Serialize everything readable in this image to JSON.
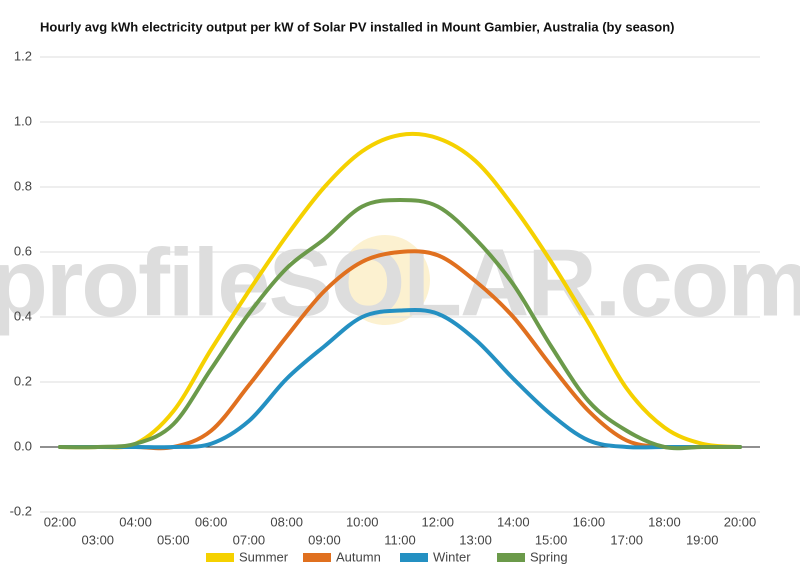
{
  "chart_data": {
    "type": "line",
    "title": "Hourly avg kWh electricity output per kW of Solar PV installed in Mount Gambier, Australia (by season)",
    "watermark": "profileSOLAR.com",
    "categories": [
      "02:00",
      "03:00",
      "04:00",
      "05:00",
      "06:00",
      "07:00",
      "08:00",
      "09:00",
      "10:00",
      "11:00",
      "12:00",
      "13:00",
      "14:00",
      "15:00",
      "16:00",
      "17:00",
      "18:00",
      "19:00",
      "20:00"
    ],
    "series": [
      {
        "name": "Summer",
        "color": "#f5d100",
        "values": [
          0,
          0,
          0.01,
          0.11,
          0.3,
          0.48,
          0.65,
          0.8,
          0.91,
          0.96,
          0.95,
          0.88,
          0.74,
          0.57,
          0.38,
          0.18,
          0.06,
          0.01,
          0
        ]
      },
      {
        "name": "Autumn",
        "color": "#e0701f",
        "values": [
          0,
          0,
          0,
          0,
          0.05,
          0.19,
          0.34,
          0.48,
          0.57,
          0.6,
          0.59,
          0.51,
          0.4,
          0.25,
          0.11,
          0.02,
          0,
          0,
          0
        ]
      },
      {
        "name": "Winter",
        "color": "#2490c2",
        "values": [
          0,
          0,
          0,
          0,
          0.01,
          0.08,
          0.21,
          0.31,
          0.4,
          0.42,
          0.41,
          0.33,
          0.21,
          0.1,
          0.02,
          0,
          0,
          0,
          0
        ]
      },
      {
        "name": "Spring",
        "color": "#6b9a4a",
        "values": [
          0,
          0,
          0.01,
          0.07,
          0.24,
          0.41,
          0.55,
          0.64,
          0.74,
          0.76,
          0.74,
          0.64,
          0.5,
          0.31,
          0.14,
          0.05,
          0,
          0,
          0
        ]
      }
    ],
    "ylim": [
      -0.2,
      1.2
    ],
    "yticks": [
      -0.2,
      {
        "value": 0,
        "label": "0.0"
      },
      0.2,
      0.4,
      0.6,
      0.8,
      {
        "value": 1,
        "label": "1.0"
      },
      1.2
    ],
    "grid": true,
    "legend": "bottom"
  }
}
